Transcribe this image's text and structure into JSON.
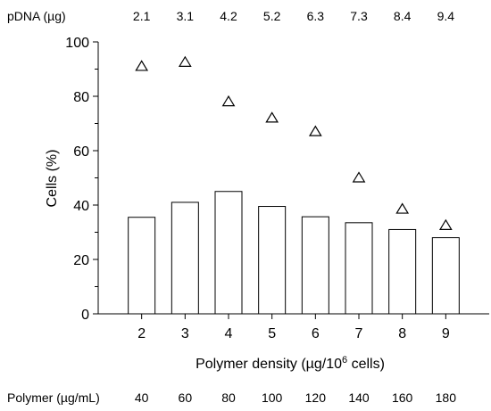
{
  "chart_data": {
    "type": "bar",
    "categories": [
      "2",
      "3",
      "4",
      "5",
      "6",
      "7",
      "8",
      "9"
    ],
    "x": [
      2,
      3,
      4,
      5,
      6,
      7,
      8,
      9
    ],
    "series": [
      {
        "kind": "bar",
        "values": [
          35.5,
          41,
          45,
          39.5,
          35.7,
          33.5,
          31,
          28
        ]
      },
      {
        "kind": "scatter",
        "marker": "open-triangle",
        "values": [
          91,
          92.5,
          78,
          72,
          67,
          50,
          38.5,
          32.5
        ]
      }
    ],
    "xlabel": "Polymer density (µg/10⁶ cells)",
    "ylabel": "Cells (%)",
    "ylim": [
      0,
      100
    ],
    "xlim": [
      1,
      10
    ],
    "yticks": [
      "0",
      "20",
      "40",
      "60",
      "80",
      "100"
    ],
    "xticks": [
      "2",
      "3",
      "4",
      "5",
      "6",
      "7",
      "8",
      "9"
    ],
    "grid": false,
    "top_axis": {
      "label": "pDNA (µg)",
      "values": [
        "2.1",
        "3.1",
        "4.2",
        "5.2",
        "6.3",
        "7.3",
        "8.4",
        "9.4"
      ]
    },
    "bottom_row": {
      "label": "Polymer (µg/mL)",
      "values": [
        "40",
        "60",
        "80",
        "100",
        "120",
        "140",
        "160",
        "180"
      ]
    }
  }
}
